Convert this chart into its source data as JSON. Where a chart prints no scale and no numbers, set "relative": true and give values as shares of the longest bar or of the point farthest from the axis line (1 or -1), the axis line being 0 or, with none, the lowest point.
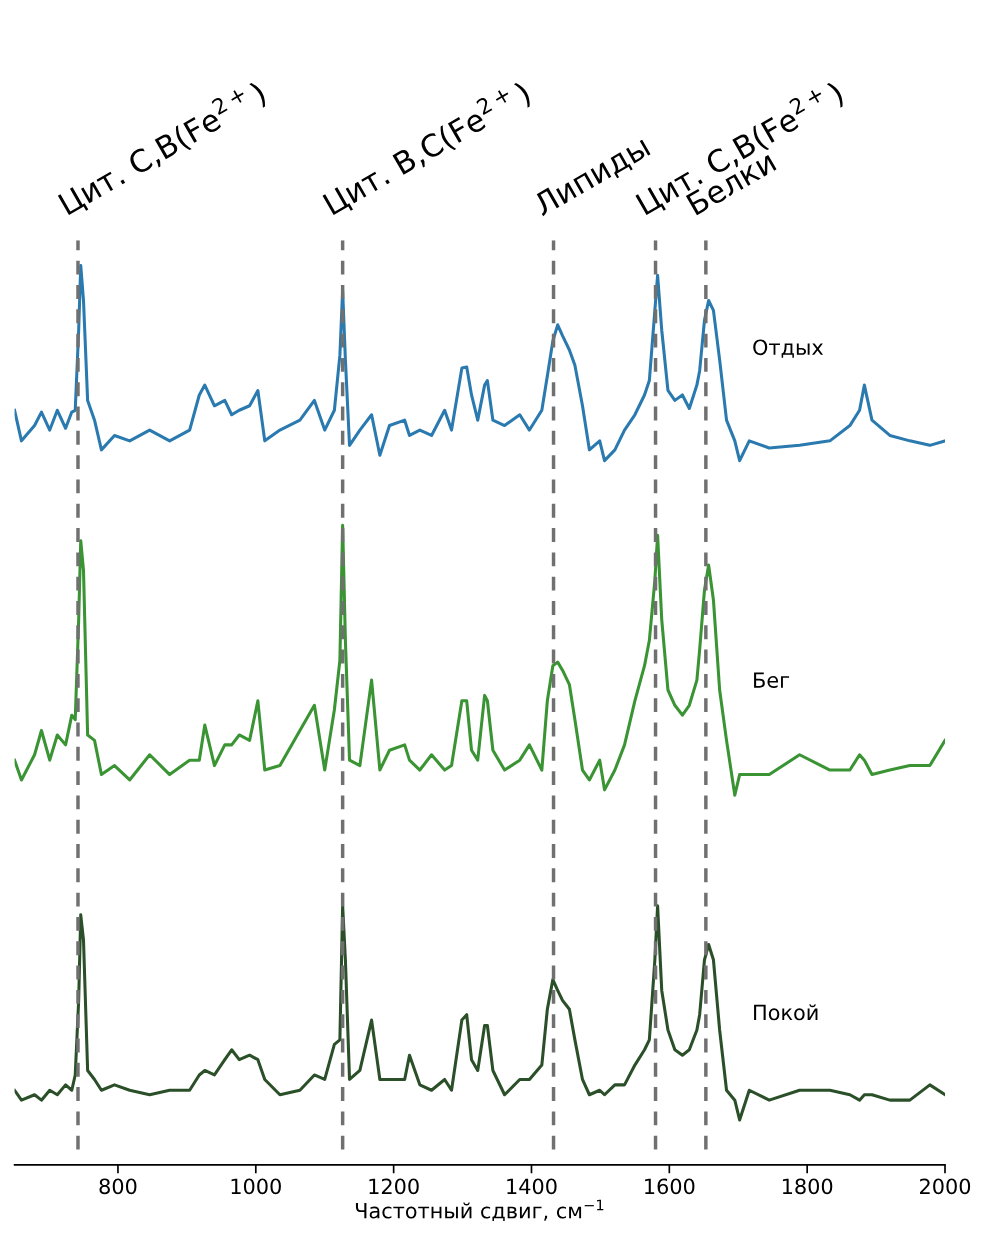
{
  "chart_data": {
    "type": "line",
    "relative": true,
    "tick_labels": "x",
    "xlabel": "Частотный сдвиг, см$^{−1}$",
    "xlim": [
      650,
      2000
    ],
    "xticks": [
      800,
      1000,
      1200,
      1400,
      1600,
      1800,
      2000
    ],
    "x": [
      650,
      660,
      679,
      689,
      701,
      712,
      724,
      733,
      738,
      743,
      746,
      750,
      756,
      766,
      776,
      795,
      817,
      846,
      875,
      904,
      918,
      926,
      940,
      955,
      965,
      976,
      991,
      1003,
      1013,
      1035,
      1064,
      1085,
      1100,
      1114,
      1122,
      1126,
      1130,
      1136,
      1151,
      1168,
      1180,
      1194,
      1216,
      1223,
      1238,
      1255,
      1274,
      1284,
      1299,
      1306,
      1313,
      1322,
      1332,
      1336,
      1344,
      1361,
      1383,
      1397,
      1415,
      1423,
      1431,
      1438,
      1445,
      1455,
      1463,
      1474,
      1484,
      1499,
      1506,
      1521,
      1535,
      1550,
      1564,
      1571,
      1579,
      1583,
      1589,
      1598,
      1608,
      1619,
      1629,
      1640,
      1644,
      1651,
      1657,
      1664,
      1673,
      1683,
      1695,
      1702,
      1716,
      1745,
      1789,
      1833,
      1862,
      1876,
      1883,
      1894,
      1920,
      1949,
      1978,
      2000
    ],
    "series": [
      {
        "name": "Отдых",
        "color": "#2a7ab0",
        "values": [
          0.839,
          0.805,
          0.822,
          0.837,
          0.817,
          0.839,
          0.819,
          0.837,
          0.839,
          0.928,
          1.0,
          0.961,
          0.85,
          0.828,
          0.795,
          0.811,
          0.805,
          0.817,
          0.805,
          0.817,
          0.856,
          0.867,
          0.844,
          0.85,
          0.834,
          0.839,
          0.844,
          0.861,
          0.805,
          0.817,
          0.828,
          0.85,
          0.817,
          0.839,
          0.9,
          0.972,
          0.895,
          0.8,
          0.817,
          0.834,
          0.789,
          0.822,
          0.828,
          0.811,
          0.817,
          0.811,
          0.839,
          0.817,
          0.886,
          0.887,
          0.856,
          0.828,
          0.867,
          0.872,
          0.828,
          0.822,
          0.834,
          0.817,
          0.839,
          0.877,
          0.916,
          0.934,
          0.922,
          0.906,
          0.889,
          0.844,
          0.795,
          0.805,
          0.783,
          0.795,
          0.817,
          0.834,
          0.856,
          0.872,
          0.95,
          0.989,
          0.928,
          0.861,
          0.85,
          0.856,
          0.841,
          0.867,
          0.883,
          0.939,
          0.961,
          0.95,
          0.895,
          0.828,
          0.805,
          0.783,
          0.805,
          0.797,
          0.8,
          0.805,
          0.822,
          0.839,
          0.867,
          0.828,
          0.811,
          0.805,
          0.8,
          0.805
        ]
      },
      {
        "name": "Бег",
        "color": "#3a9434",
        "values": [
          0.45,
          0.428,
          0.456,
          0.483,
          0.45,
          0.478,
          0.467,
          0.5,
          0.495,
          0.606,
          0.694,
          0.661,
          0.478,
          0.472,
          0.434,
          0.444,
          0.428,
          0.456,
          0.434,
          0.45,
          0.45,
          0.489,
          0.444,
          0.467,
          0.467,
          0.478,
          0.472,
          0.516,
          0.439,
          0.444,
          0.483,
          0.511,
          0.439,
          0.506,
          0.561,
          0.711,
          0.583,
          0.45,
          0.444,
          0.539,
          0.439,
          0.461,
          0.467,
          0.45,
          0.439,
          0.456,
          0.439,
          0.444,
          0.516,
          0.516,
          0.461,
          0.45,
          0.522,
          0.516,
          0.461,
          0.439,
          0.45,
          0.467,
          0.439,
          0.516,
          0.555,
          0.559,
          0.55,
          0.534,
          0.495,
          0.439,
          0.428,
          0.45,
          0.417,
          0.439,
          0.467,
          0.516,
          0.555,
          0.583,
          0.65,
          0.7,
          0.606,
          0.528,
          0.511,
          0.5,
          0.511,
          0.539,
          0.573,
          0.639,
          0.667,
          0.628,
          0.528,
          0.472,
          0.411,
          0.434,
          0.434,
          0.434,
          0.456,
          0.439,
          0.439,
          0.456,
          0.45,
          0.434,
          0.439,
          0.444,
          0.444,
          0.472
        ]
      },
      {
        "name": "Покой",
        "color": "#2b5029",
        "values": [
          0.083,
          0.072,
          0.078,
          0.072,
          0.083,
          0.078,
          0.089,
          0.083,
          0.1,
          0.183,
          0.278,
          0.25,
          0.105,
          0.095,
          0.083,
          0.089,
          0.083,
          0.078,
          0.083,
          0.083,
          0.1,
          0.105,
          0.1,
          0.117,
          0.128,
          0.117,
          0.122,
          0.117,
          0.095,
          0.078,
          0.083,
          0.1,
          0.095,
          0.134,
          0.139,
          0.288,
          0.228,
          0.095,
          0.105,
          0.161,
          0.095,
          0.095,
          0.095,
          0.122,
          0.089,
          0.083,
          0.095,
          0.083,
          0.161,
          0.167,
          0.117,
          0.105,
          0.155,
          0.155,
          0.105,
          0.078,
          0.095,
          0.095,
          0.111,
          0.173,
          0.206,
          0.194,
          0.183,
          0.173,
          0.139,
          0.095,
          0.078,
          0.083,
          0.078,
          0.089,
          0.089,
          0.111,
          0.128,
          0.139,
          0.228,
          0.288,
          0.194,
          0.15,
          0.128,
          0.122,
          0.128,
          0.15,
          0.167,
          0.228,
          0.245,
          0.228,
          0.15,
          0.083,
          0.072,
          0.05,
          0.083,
          0.072,
          0.083,
          0.083,
          0.078,
          0.072,
          0.078,
          0.078,
          0.072,
          0.072,
          0.089,
          0.078
        ]
      }
    ],
    "ref_lines": [
      {
        "axis": "x",
        "value": 742,
        "label": "Цит. C,B(Fe$^{2+}$)",
        "color": "#707070",
        "line_style": "dashed"
      },
      {
        "axis": "x",
        "value": 1126,
        "label": "Цит. B,C(Fe$^{2+}$)",
        "color": "#707070",
        "line_style": "dashed"
      },
      {
        "axis": "x",
        "value": 1432,
        "label": "Липиды",
        "color": "#707070",
        "line_style": "dashed"
      },
      {
        "axis": "x",
        "value": 1580,
        "label": "Цит. C,B(Fe$^{2+}$)",
        "color": "#707070",
        "line_style": "dashed"
      },
      {
        "axis": "x",
        "value": 1653,
        "label": "Белки",
        "color": "#707070",
        "line_style": "dashed"
      }
    ]
  }
}
